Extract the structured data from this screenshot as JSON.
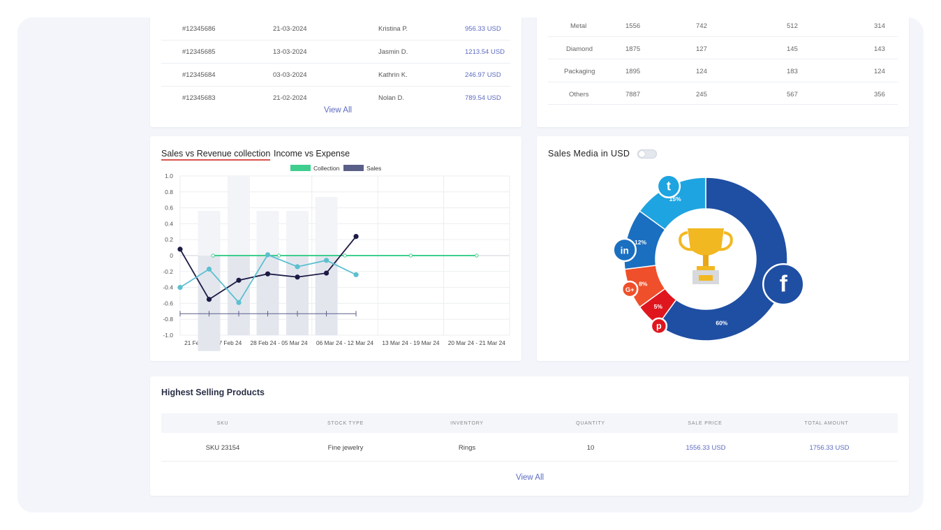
{
  "orders": {
    "rows": [
      {
        "id": "#12345686",
        "date": "21-03-2024",
        "name": "Kristina P.",
        "amount": "956.33 USD"
      },
      {
        "id": "#12345685",
        "date": "13-03-2024",
        "name": "Jasmin D.",
        "amount": "1213.54 USD"
      },
      {
        "id": "#12345684",
        "date": "03-03-2024",
        "name": "Kathrin K.",
        "amount": "246.97 USD"
      },
      {
        "id": "#12345683",
        "date": "21-02-2024",
        "name": "Nolan D.",
        "amount": "789.54 USD"
      }
    ],
    "view_all": "View All"
  },
  "materials": {
    "rows": [
      {
        "name": "Metal",
        "v1": "1556",
        "v2": "742",
        "v3": "512",
        "v4": "314"
      },
      {
        "name": "Diamond",
        "v1": "1875",
        "v2": "127",
        "v3": "145",
        "v4": "143"
      },
      {
        "name": "Packaging",
        "v1": "1895",
        "v2": "124",
        "v3": "183",
        "v4": "124"
      },
      {
        "name": "Others",
        "v1": "7887",
        "v2": "245",
        "v3": "567",
        "v4": "356"
      }
    ]
  },
  "chart_tabs": {
    "active": "Sales vs Revenue collection",
    "second": "Income vs Expense"
  },
  "chart_data": {
    "type": "line",
    "categories": [
      "21 Feb 24 - 27 Feb 24",
      "28 Feb 24 - 05 Mar 24",
      "06 Mar 24 - 12 Mar 24",
      "13 Mar 24 - 19 Mar 24",
      "20 Mar 24 - 21 Mar 24"
    ],
    "legend": [
      "Collection",
      "Sales"
    ],
    "ylim": [
      -1.0,
      1.0
    ],
    "yticks": [
      "1.0",
      "0.8",
      "0.6",
      "0.4",
      "0.2",
      "0",
      "-0.2",
      "-0.4",
      "-0.6",
      "-0.8",
      "-1.0"
    ],
    "series": [
      {
        "name": "Collection",
        "color": "#3ecf8e",
        "x": [
          0.5,
          1.5,
          2.5,
          3.5,
          4.5
        ],
        "values": [
          0,
          0,
          0,
          0,
          0
        ]
      },
      {
        "name": "Sales",
        "color": "#1b1b45",
        "x": [
          0,
          0.44,
          0.89,
          1.33,
          1.78,
          2.22,
          2.67
        ],
        "values": [
          0.08,
          -0.55,
          -0.31,
          -0.23,
          -0.27,
          -0.22,
          0.24
        ]
      },
      {
        "color": "#5bc0d0",
        "x": [
          0,
          0.44,
          0.89,
          1.33,
          1.78,
          2.22,
          2.67
        ],
        "values": [
          -0.4,
          -0.17,
          -0.59,
          0.01,
          -0.14,
          -0.06,
          -0.24
        ]
      }
    ],
    "bars": {
      "x": [
        0.44,
        0.89,
        1.33,
        1.78,
        2.22
      ],
      "values": [
        -0.8,
        -1.0,
        -0.8,
        -0.8,
        -0.8
      ]
    },
    "error_bar_y": -0.73
  },
  "sales_media": {
    "title": "Sales Media in USD",
    "segments": [
      {
        "label": "60%",
        "value": 60,
        "color": "#1f4fa3",
        "icon": "facebook-icon",
        "glyph": "f"
      },
      {
        "label": "5%",
        "value": 5,
        "color": "#e0161e",
        "icon": "pinterest-icon",
        "glyph": "p"
      },
      {
        "label": "8%",
        "value": 8,
        "color": "#ef4f2a",
        "icon": "google-plus-icon",
        "glyph": "G+"
      },
      {
        "label": "12%",
        "value": 12,
        "color": "#1a6fc0",
        "icon": "linkedin-icon",
        "glyph": "in"
      },
      {
        "label": "15%",
        "value": 15,
        "color": "#1ea4e0",
        "icon": "twitter-icon",
        "glyph": "t"
      }
    ]
  },
  "products": {
    "title": "Highest Selling Products",
    "headers": [
      "SKU",
      "STOCK TYPE",
      "INVENTORY",
      "QUANTITY",
      "SALE PRICE",
      "TOTAL AMOUNT"
    ],
    "rows": [
      {
        "sku": "SKU 23154",
        "stock": "Fine jewelry",
        "inventory": "Rings",
        "qty": "10",
        "sale": "1556.33 USD",
        "total": "1756.33 USD"
      }
    ],
    "view_all": "View All"
  }
}
